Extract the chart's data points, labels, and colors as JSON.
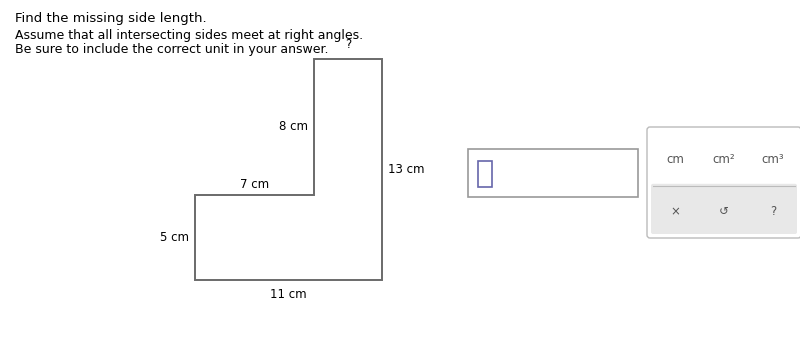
{
  "title_line1": "Find the missing side length.",
  "title_line2": "Assume that all intersecting sides meet at right angles.",
  "title_line3": "Be sure to include the correct unit in your answer.",
  "shape_color": "#6a6a6a",
  "shape_linewidth": 1.4,
  "labels": {
    "question_mark": "?",
    "top_inner_vertical": "8 cm",
    "top_inner_horizontal": "7 cm",
    "left_vertical": "5 cm",
    "bottom_horizontal": "11 cm",
    "right_vertical": "13 cm"
  },
  "label_fontsize": 8.5,
  "title_fontsize1": 9.5,
  "title_fontsize2": 9.0,
  "unit_labels": [
    "cm",
    "cm²",
    "cm³"
  ],
  "symbol_labels": [
    "×",
    "↺",
    "?"
  ],
  "panel_color": "#e8e8e8",
  "panel_border": "#bbbbbb",
  "text_color": "#555555",
  "small_rect_color": "#6666aa",
  "bg_color": "#ffffff"
}
